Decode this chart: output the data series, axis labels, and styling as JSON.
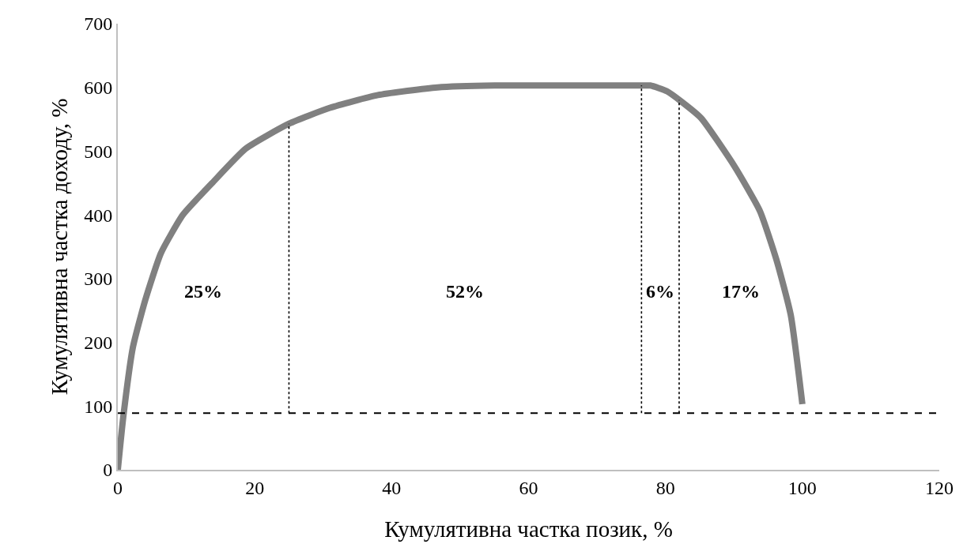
{
  "chart_data": {
    "type": "line",
    "xlabel": "Кумулятивна частка позик, %",
    "ylabel": "Кумулятивна частка доходу, %",
    "xlim": [
      0,
      120
    ],
    "xticks": [
      0,
      20,
      40,
      60,
      80,
      100,
      120
    ],
    "ylim": [
      0,
      700
    ],
    "yticks": [
      0,
      100,
      200,
      300,
      400,
      500,
      600,
      700
    ],
    "grid": false,
    "marker": "none",
    "series": [
      {
        "color": "#808080",
        "line_style": "solid",
        "x": [
          0,
          0.8,
          2.2,
          4,
          6.3,
          9.5,
          13.7,
          18.7,
          25,
          31,
          38,
          46.7,
          55,
          65,
          76.5,
          77.8,
          80.2,
          82.3,
          85.2,
          90.1,
          93.8,
          96.2,
          98.3,
          100
        ],
        "values": [
          0,
          83,
          192,
          266,
          340,
          400,
          449,
          504,
          543,
          568,
          588,
          600,
          603,
          603,
          603,
          603,
          594,
          578,
          552,
          476,
          406,
          330,
          243,
          103
        ]
      },
      {
        "color": "#000000",
        "line_style": "dotted",
        "x": [
          25,
          25
        ],
        "values": [
          89,
          543
        ]
      },
      {
        "color": "#000000",
        "line_style": "dotted",
        "x": [
          76.5,
          76.5
        ],
        "values": [
          89,
          603
        ]
      },
      {
        "color": "#000000",
        "line_style": "dotted",
        "x": [
          82,
          82
        ],
        "values": [
          89,
          580
        ]
      }
    ],
    "ref_lines": [
      {
        "axis": "y",
        "value": 89,
        "color": "#000000",
        "line_style": "dashed"
      }
    ],
    "annotations": [
      "25%",
      "52%",
      "6%",
      "17%"
    ]
  }
}
